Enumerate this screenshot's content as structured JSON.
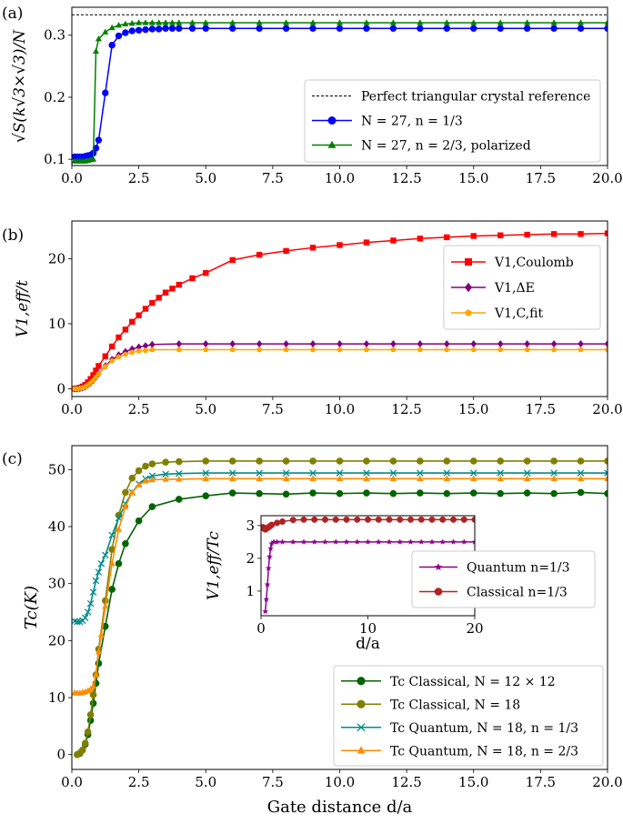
{
  "chart_data": [
    {
      "id": "a",
      "type": "line",
      "panel_label": "(a)",
      "ylabel": "√S(k√3×√3)/N",
      "xlabel": "",
      "xlim": [
        0,
        20
      ],
      "ylim": [
        0.09,
        0.345
      ],
      "xticks": [
        0,
        2.5,
        5,
        7.5,
        10,
        12.5,
        15,
        17.5,
        20
      ],
      "xtick_labels": [
        "0.0",
        "2.5",
        "5.0",
        "7.5",
        "10.0",
        "12.5",
        "15.0",
        "17.5",
        "20.0"
      ],
      "yticks": [
        0.1,
        0.2,
        0.3
      ],
      "ytick_labels": [
        "0.1",
        "0.2",
        "0.3"
      ],
      "reference": {
        "name": "Perfect triangular crystal reference",
        "y": 0.333,
        "color": "#000000"
      },
      "legend_position": "center-right",
      "series": [
        {
          "name": "N = 27, n = 1/3",
          "color": "#0000ff",
          "marker": "circle",
          "x": [
            0.1,
            0.2,
            0.3,
            0.4,
            0.5,
            0.6,
            0.7,
            0.8,
            0.9,
            1.0,
            1.25,
            1.5,
            1.75,
            2.0,
            2.25,
            2.5,
            2.75,
            3.0,
            3.25,
            3.5,
            3.75,
            4.0,
            4.5,
            5,
            6,
            7,
            8,
            9,
            10,
            11,
            12,
            13,
            14,
            15,
            16,
            17,
            18,
            19,
            20
          ],
          "y": [
            0.104,
            0.104,
            0.104,
            0.104,
            0.105,
            0.106,
            0.107,
            0.11,
            0.118,
            0.131,
            0.207,
            0.284,
            0.299,
            0.304,
            0.307,
            0.308,
            0.309,
            0.31,
            0.31,
            0.311,
            0.311,
            0.311,
            0.311,
            0.311,
            0.311,
            0.311,
            0.311,
            0.311,
            0.311,
            0.311,
            0.311,
            0.311,
            0.311,
            0.311,
            0.311,
            0.311,
            0.311,
            0.311,
            0.311
          ]
        },
        {
          "name": "N = 27, n = 2/3, polarized",
          "color": "#008000",
          "marker": "triangle",
          "x": [
            0.1,
            0.2,
            0.3,
            0.4,
            0.5,
            0.6,
            0.7,
            0.8,
            0.9,
            1.0,
            1.25,
            1.5,
            1.75,
            2.0,
            2.25,
            2.5,
            2.75,
            3.0,
            3.25,
            3.5,
            3.75,
            4.0,
            4.5,
            5,
            6,
            7,
            8,
            9,
            10,
            11,
            12,
            13,
            14,
            15,
            16,
            17,
            18,
            19,
            20
          ],
          "y": [
            0.097,
            0.097,
            0.097,
            0.097,
            0.097,
            0.098,
            0.099,
            0.1,
            0.274,
            0.294,
            0.305,
            0.312,
            0.316,
            0.318,
            0.319,
            0.32,
            0.32,
            0.32,
            0.32,
            0.32,
            0.32,
            0.32,
            0.32,
            0.32,
            0.32,
            0.32,
            0.32,
            0.32,
            0.32,
            0.32,
            0.32,
            0.32,
            0.32,
            0.32,
            0.32,
            0.32,
            0.32,
            0.32,
            0.32
          ]
        }
      ]
    },
    {
      "id": "b",
      "type": "line",
      "panel_label": "(b)",
      "ylabel": "V1,eff/t",
      "xlabel": "",
      "xlim": [
        0,
        20
      ],
      "ylim": [
        -1.2,
        25.8
      ],
      "xticks": [
        0,
        2.5,
        5,
        7.5,
        10,
        12.5,
        15,
        17.5,
        20
      ],
      "xtick_labels": [
        "0.0",
        "2.5",
        "5.0",
        "7.5",
        "10.0",
        "12.5",
        "15.0",
        "17.5",
        "20.0"
      ],
      "yticks": [
        0,
        10,
        20
      ],
      "ytick_labels": [
        "0",
        "10",
        "20"
      ],
      "legend_position": "center-right",
      "series": [
        {
          "name": "V1,Coulomb",
          "color": "#ff0000",
          "marker": "square",
          "x": [
            0.1,
            0.2,
            0.3,
            0.4,
            0.5,
            0.6,
            0.7,
            0.8,
            0.9,
            1.0,
            1.25,
            1.5,
            1.75,
            2.0,
            2.25,
            2.5,
            2.75,
            3.0,
            3.25,
            3.5,
            3.75,
            4.0,
            4.5,
            5,
            6,
            7,
            8,
            9,
            10,
            11,
            12,
            13,
            14,
            15,
            16,
            17,
            18,
            19,
            20
          ],
          "y": [
            0.0,
            0.05,
            0.15,
            0.35,
            0.6,
            1.0,
            1.5,
            2.1,
            2.8,
            3.5,
            5.0,
            6.5,
            7.9,
            9.1,
            10.3,
            11.3,
            12.3,
            13.2,
            14.0,
            14.8,
            15.4,
            16.0,
            17.0,
            17.8,
            19.8,
            20.6,
            21.2,
            21.7,
            22.1,
            22.5,
            22.8,
            23.1,
            23.3,
            23.5,
            23.6,
            23.7,
            23.8,
            23.8,
            23.9
          ]
        },
        {
          "name": "V1,ΔE",
          "color": "#800080",
          "marker": "diamond",
          "x": [
            0.1,
            0.2,
            0.3,
            0.4,
            0.5,
            0.6,
            0.7,
            0.8,
            0.9,
            1.0,
            1.25,
            1.5,
            1.75,
            2.0,
            2.25,
            2.5,
            2.75,
            3.0,
            4,
            5,
            6,
            7,
            8,
            9,
            10,
            11,
            12,
            13,
            14,
            15,
            16,
            17,
            18,
            19,
            20
          ],
          "y": [
            0.0,
            0.0,
            0.05,
            0.15,
            0.3,
            0.6,
            0.9,
            1.3,
            1.8,
            2.3,
            3.5,
            4.5,
            5.2,
            5.7,
            6.1,
            6.4,
            6.6,
            6.8,
            6.9,
            6.9,
            6.9,
            6.9,
            6.9,
            6.9,
            6.9,
            6.9,
            6.9,
            6.9,
            6.9,
            6.9,
            6.9,
            6.9,
            6.9,
            6.9,
            6.9
          ]
        },
        {
          "name": "V1,C,fit",
          "color": "#ffa500",
          "marker": "pentagon",
          "x": [
            0.1,
            0.2,
            0.3,
            0.4,
            0.5,
            0.6,
            0.7,
            0.8,
            0.9,
            1.0,
            1.25,
            1.5,
            1.75,
            2.0,
            2.25,
            2.5,
            2.75,
            3.0,
            4,
            5,
            6,
            7,
            8,
            9,
            10,
            11,
            12,
            13,
            14,
            15,
            16,
            17,
            18,
            19,
            20
          ],
          "y": [
            0.0,
            0.0,
            0.05,
            0.15,
            0.3,
            0.6,
            0.9,
            1.3,
            1.8,
            2.3,
            3.4,
            4.3,
            4.9,
            5.3,
            5.6,
            5.8,
            5.9,
            6.0,
            6.0,
            6.0,
            6.0,
            6.0,
            6.0,
            6.0,
            6.0,
            6.0,
            6.0,
            6.0,
            6.0,
            6.0,
            6.0,
            6.0,
            6.0,
            6.0,
            6.0
          ]
        }
      ]
    },
    {
      "id": "c",
      "type": "line",
      "panel_label": "(c)",
      "ylabel": "Tc(K)",
      "xlabel": "Gate distance d/a",
      "xlim": [
        0,
        20
      ],
      "ylim": [
        -2.6,
        54.2
      ],
      "xticks": [
        0,
        2.5,
        5,
        7.5,
        10,
        12.5,
        15,
        17.5,
        20
      ],
      "xtick_labels": [
        "0.0",
        "2.5",
        "5.0",
        "7.5",
        "10.0",
        "12.5",
        "15.0",
        "17.5",
        "20.0"
      ],
      "yticks": [
        0,
        10,
        20,
        30,
        40,
        50
      ],
      "ytick_labels": [
        "0",
        "10",
        "20",
        "30",
        "40",
        "50"
      ],
      "legend_position": "lower-right",
      "series": [
        {
          "name": "Tc Classical, N = 12 × 12",
          "color": "#006400",
          "marker": "circle",
          "x": [
            0.2,
            0.3,
            0.4,
            0.5,
            0.6,
            0.7,
            0.8,
            0.9,
            1.0,
            1.25,
            1.5,
            1.75,
            2.0,
            2.5,
            3,
            4,
            5,
            6,
            7,
            8,
            9,
            10,
            11,
            12,
            13,
            14,
            15,
            16,
            17,
            18,
            19,
            20
          ],
          "y": [
            0.0,
            0.2,
            0.8,
            1.8,
            3.5,
            6.0,
            9.0,
            12.5,
            16.0,
            22.5,
            29.0,
            33.5,
            37.0,
            41.0,
            43.5,
            44.8,
            45.4,
            45.9,
            45.8,
            45.7,
            45.9,
            45.8,
            45.9,
            45.8,
            45.9,
            45.8,
            45.9,
            45.8,
            45.9,
            45.8,
            46.0,
            45.8
          ]
        },
        {
          "name": "Tc Classical, N = 18",
          "color": "#808000",
          "marker": "circle",
          "x": [
            0.2,
            0.3,
            0.4,
            0.5,
            0.6,
            0.7,
            0.8,
            0.9,
            1.0,
            1.25,
            1.5,
            1.75,
            2.0,
            2.25,
            2.5,
            2.75,
            3.0,
            3.5,
            4,
            5,
            6,
            7,
            8,
            9,
            10,
            11,
            12,
            13,
            14,
            15,
            16,
            17,
            18,
            19,
            20
          ],
          "y": [
            0.0,
            0.3,
            0.8,
            2.0,
            4.0,
            7.0,
            10.5,
            14.0,
            18.5,
            27.0,
            36.0,
            42.0,
            46.0,
            48.5,
            49.8,
            50.6,
            51.0,
            51.3,
            51.4,
            51.5,
            51.5,
            51.5,
            51.5,
            51.5,
            51.5,
            51.5,
            51.5,
            51.5,
            51.5,
            51.5,
            51.5,
            51.5,
            51.5,
            51.5,
            51.5
          ]
        },
        {
          "name": "Tc Quantum, N = 18, n = 1/3",
          "color": "#008b8b",
          "marker": "x",
          "x": [
            0.1,
            0.2,
            0.3,
            0.4,
            0.5,
            0.6,
            0.7,
            0.8,
            0.9,
            1.0,
            1.1,
            1.25,
            1.5,
            1.75,
            2.0,
            2.25,
            2.5,
            2.75,
            3.0,
            3.5,
            4,
            5,
            6,
            7,
            8,
            9,
            10,
            11,
            12,
            13,
            14,
            15,
            16,
            17,
            18,
            19,
            20
          ],
          "y": [
            23.4,
            23.3,
            23.3,
            23.5,
            24.0,
            25.0,
            26.5,
            28.5,
            30.5,
            32.0,
            33.5,
            35.0,
            38.5,
            41.5,
            44.0,
            46.0,
            47.5,
            48.4,
            48.9,
            49.2,
            49.3,
            49.4,
            49.4,
            49.4,
            49.4,
            49.4,
            49.4,
            49.4,
            49.4,
            49.4,
            49.4,
            49.4,
            49.4,
            49.4,
            49.4,
            49.4,
            49.4
          ]
        },
        {
          "name": "Tc Quantum, N = 18, n = 2/3",
          "color": "#ff8c00",
          "marker": "triangle",
          "x": [
            0.1,
            0.2,
            0.3,
            0.4,
            0.5,
            0.6,
            0.7,
            0.8,
            0.9,
            1.0,
            1.1,
            1.25,
            1.5,
            1.75,
            2.0,
            2.25,
            2.5,
            2.75,
            3.0,
            3.5,
            4,
            5,
            6,
            7,
            8,
            9,
            10,
            11,
            12,
            13,
            14,
            15,
            16,
            17,
            18,
            19,
            20
          ],
          "y": [
            10.8,
            10.8,
            10.8,
            10.9,
            11.0,
            11.2,
            11.5,
            12.0,
            14.0,
            18.0,
            21.0,
            26.0,
            33.5,
            39.5,
            43.5,
            46.0,
            47.3,
            48.0,
            48.2,
            48.3,
            48.3,
            48.4,
            48.4,
            48.4,
            48.4,
            48.4,
            48.4,
            48.4,
            48.4,
            48.4,
            48.4,
            48.4,
            48.4,
            48.4,
            48.4,
            48.4,
            48.4
          ]
        }
      ]
    },
    {
      "id": "c-inset",
      "type": "line",
      "panel_label": "",
      "ylabel": "V1,eff/Tc",
      "xlabel": "d/a",
      "xlim": [
        0,
        20
      ],
      "ylim": [
        0.25,
        3.3
      ],
      "xticks": [
        0,
        10,
        20
      ],
      "xtick_labels": [
        "0",
        "10",
        "20"
      ],
      "yticks": [
        1,
        2,
        3
      ],
      "ytick_labels": [
        "1",
        "2",
        "3"
      ],
      "legend_position": "lower-right",
      "series": [
        {
          "name": "Quantum n=1/3",
          "color": "#8b008b",
          "marker": "star",
          "x": [
            0.4,
            0.5,
            0.6,
            0.7,
            0.8,
            0.9,
            1.0,
            1.2,
            1.5,
            2,
            3,
            4,
            5,
            6,
            7,
            8,
            9,
            10,
            11,
            12,
            13,
            14,
            15,
            16,
            17,
            18,
            19,
            20
          ],
          "y": [
            0.38,
            0.75,
            1.2,
            1.7,
            2.05,
            2.3,
            2.45,
            2.5,
            2.5,
            2.5,
            2.5,
            2.5,
            2.5,
            2.5,
            2.5,
            2.5,
            2.5,
            2.5,
            2.5,
            2.5,
            2.5,
            2.5,
            2.5,
            2.5,
            2.5,
            2.5,
            2.5,
            2.5
          ]
        },
        {
          "name": "Classical n=1/3",
          "color": "#b22222",
          "marker": "circle",
          "x": [
            0.2,
            0.3,
            0.4,
            0.5,
            0.6,
            0.7,
            0.8,
            0.9,
            1.0,
            1.5,
            2,
            3,
            4,
            5,
            6,
            7,
            8,
            9,
            10,
            11,
            12,
            13,
            14,
            15,
            16,
            17,
            18,
            19,
            20
          ],
          "y": [
            2.95,
            2.9,
            2.88,
            2.9,
            2.92,
            2.95,
            2.97,
            3.0,
            3.02,
            3.08,
            3.12,
            3.17,
            3.18,
            3.18,
            3.18,
            3.18,
            3.18,
            3.18,
            3.18,
            3.18,
            3.18,
            3.18,
            3.18,
            3.18,
            3.18,
            3.18,
            3.18,
            3.18,
            3.18
          ]
        }
      ]
    }
  ]
}
